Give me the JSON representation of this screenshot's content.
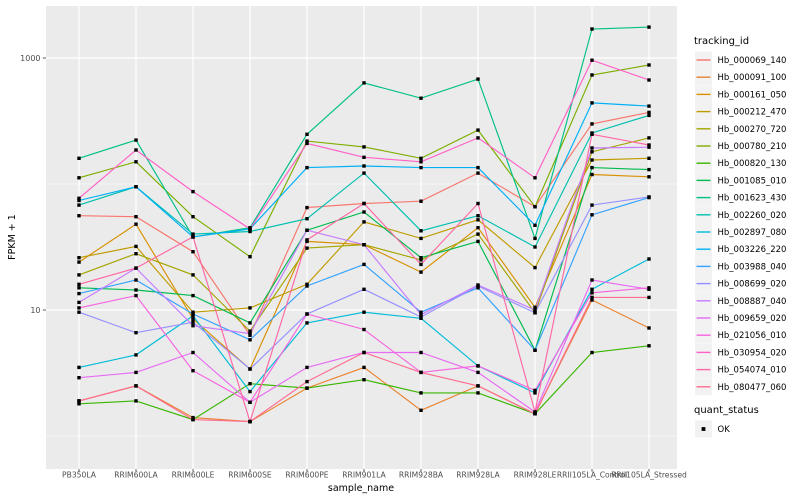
{
  "figure": {
    "background": "#FFFFFF",
    "panel_background": "#EBEBEB",
    "grid_major_color": "#FFFFFF",
    "grid_minor_color": "#FFFFFF",
    "tick_label_color": "#4D4D4D",
    "axis_title_color": "#000000",
    "point_color": "#000000",
    "legend_key_background": "#F2F2F2"
  },
  "chart_data": {
    "type": "line",
    "title": "",
    "xlabel": "sample_name",
    "ylabel": "FPKM + 1",
    "y_scale": "log10",
    "y_tick_labels": [
      "1000",
      "10"
    ],
    "y_tick_values": [
      1000,
      10
    ],
    "y_minor_values": [
      100,
      1
    ],
    "ylim": [
      0.55,
      2580
    ],
    "grid": true,
    "legend_position": "right",
    "categories": [
      "PB350LA",
      "RRIM600LA",
      "RRIM600LE",
      "RRIM600SE",
      "RRIM600PE",
      "RRIM901LA",
      "RRIM928BA",
      "RRIM928LA",
      "RRIM928LE",
      "RRII105LA_Control",
      "RRII105LA_Stressed"
    ],
    "legend": {
      "title": "tracking_id"
    },
    "legend2": {
      "title": "quant_status",
      "items": [
        {
          "label": "OK",
          "marker": "square",
          "color": "#000000"
        }
      ]
    },
    "series": [
      {
        "name": "Hb_000069_140",
        "color": "#F8766D",
        "values": [
          56,
          55,
          29,
          6.3,
          65,
          70,
          73,
          122,
          66,
          300,
          370
        ]
      },
      {
        "name": "Hb_000091_100",
        "color": "#EA8331",
        "values": [
          1.9,
          2.5,
          1.4,
          1.3,
          2.4,
          3.5,
          1.6,
          2.5,
          1.5,
          12,
          7.2
        ]
      },
      {
        "name": "Hb_000161_050",
        "color": "#D89000",
        "values": [
          24,
          48,
          8.5,
          3.4,
          35,
          33,
          20,
          45,
          10.5,
          119,
          114
        ]
      },
      {
        "name": "Hb_000212_470",
        "color": "#C09B00",
        "values": [
          26,
          32,
          9.6,
          10.4,
          16,
          50,
          37,
          52,
          21.7,
          155,
          160
        ]
      },
      {
        "name": "Hb_000270_720",
        "color": "#A3A500",
        "values": [
          19,
          28,
          19,
          6.8,
          31,
          33,
          25,
          40,
          9.5,
          180,
          232
        ]
      },
      {
        "name": "Hb_000780_210",
        "color": "#7CAE00",
        "values": [
          112,
          150,
          55,
          26.5,
          219,
          197,
          160,
          268,
          66,
          733,
          880
        ]
      },
      {
        "name": "Hb_000820_130",
        "color": "#39B600",
        "values": [
          1.8,
          1.9,
          1.35,
          2.6,
          2.4,
          2.8,
          2.2,
          2.2,
          1.5,
          4.6,
          5.2
        ]
      },
      {
        "name": "Hb_001085_010",
        "color": "#00BB4E",
        "values": [
          15,
          14.4,
          13,
          7.9,
          43,
          60,
          26,
          35,
          4.8,
          135,
          130
        ]
      },
      {
        "name": "Hb_001623_430",
        "color": "#00C087",
        "values": [
          160,
          223,
          38,
          45,
          248,
          635,
          480,
          680,
          37,
          1700,
          1760
        ]
      },
      {
        "name": "Hb_002260_020",
        "color": "#00C0AF",
        "values": [
          68,
          95,
          40,
          42,
          53,
          122,
          42.5,
          56,
          31.6,
          254,
          350
        ]
      },
      {
        "name": "Hb_002897_080",
        "color": "#00BCD8",
        "values": [
          3.5,
          4.4,
          9,
          2.25,
          7.9,
          9.6,
          8.6,
          3.6,
          2.2,
          14.6,
          25.4
        ]
      },
      {
        "name": "Hb_003226_220",
        "color": "#00B0F6",
        "values": [
          74,
          95,
          38,
          44,
          135,
          139,
          135,
          135,
          47,
          440,
          415
        ]
      },
      {
        "name": "Hb_003988_040",
        "color": "#35A2FF",
        "values": [
          13.5,
          17.3,
          9.3,
          5.8,
          15.5,
          23,
          9.6,
          15,
          4.8,
          57,
          78
        ]
      },
      {
        "name": "Hb_008699_020",
        "color": "#9590FF",
        "values": [
          9.6,
          6.6,
          8,
          3.4,
          9.3,
          14.6,
          8.8,
          15.5,
          9.5,
          68,
          79
        ]
      },
      {
        "name": "Hb_008887_040",
        "color": "#C77CFF",
        "values": [
          11.5,
          21.5,
          7.5,
          6.5,
          43,
          33,
          9.2,
          15.8,
          10,
          193,
          196
        ]
      },
      {
        "name": "Hb_009659_020",
        "color": "#E76BF3",
        "values": [
          2.9,
          3.2,
          4.6,
          1.85,
          3.5,
          4.6,
          4.6,
          3.2,
          1.55,
          17.3,
          14.6
        ]
      },
      {
        "name": "Hb_021056_010",
        "color": "#F763E0",
        "values": [
          10.4,
          13,
          3.3,
          1.85,
          9.3,
          7.0,
          3.2,
          3.6,
          2.3,
          13.7,
          15
        ]
      },
      {
        "name": "Hb_030954_020",
        "color": "#FF61C7",
        "values": [
          77,
          186,
          87,
          44,
          210,
          163,
          150,
          232,
          112,
          960,
          669
        ]
      },
      {
        "name": "Hb_054074_010",
        "color": "#FF68A5",
        "values": [
          16,
          21.5,
          38,
          1.3,
          36,
          70,
          23,
          70,
          1.55,
          248,
          204
        ]
      },
      {
        "name": "Hb_080477_060",
        "color": "#FF6C91",
        "values": [
          1.9,
          2.5,
          1.35,
          1.3,
          2.7,
          4.6,
          3.2,
          2.5,
          1.5,
          12.6,
          12.6
        ]
      }
    ]
  }
}
